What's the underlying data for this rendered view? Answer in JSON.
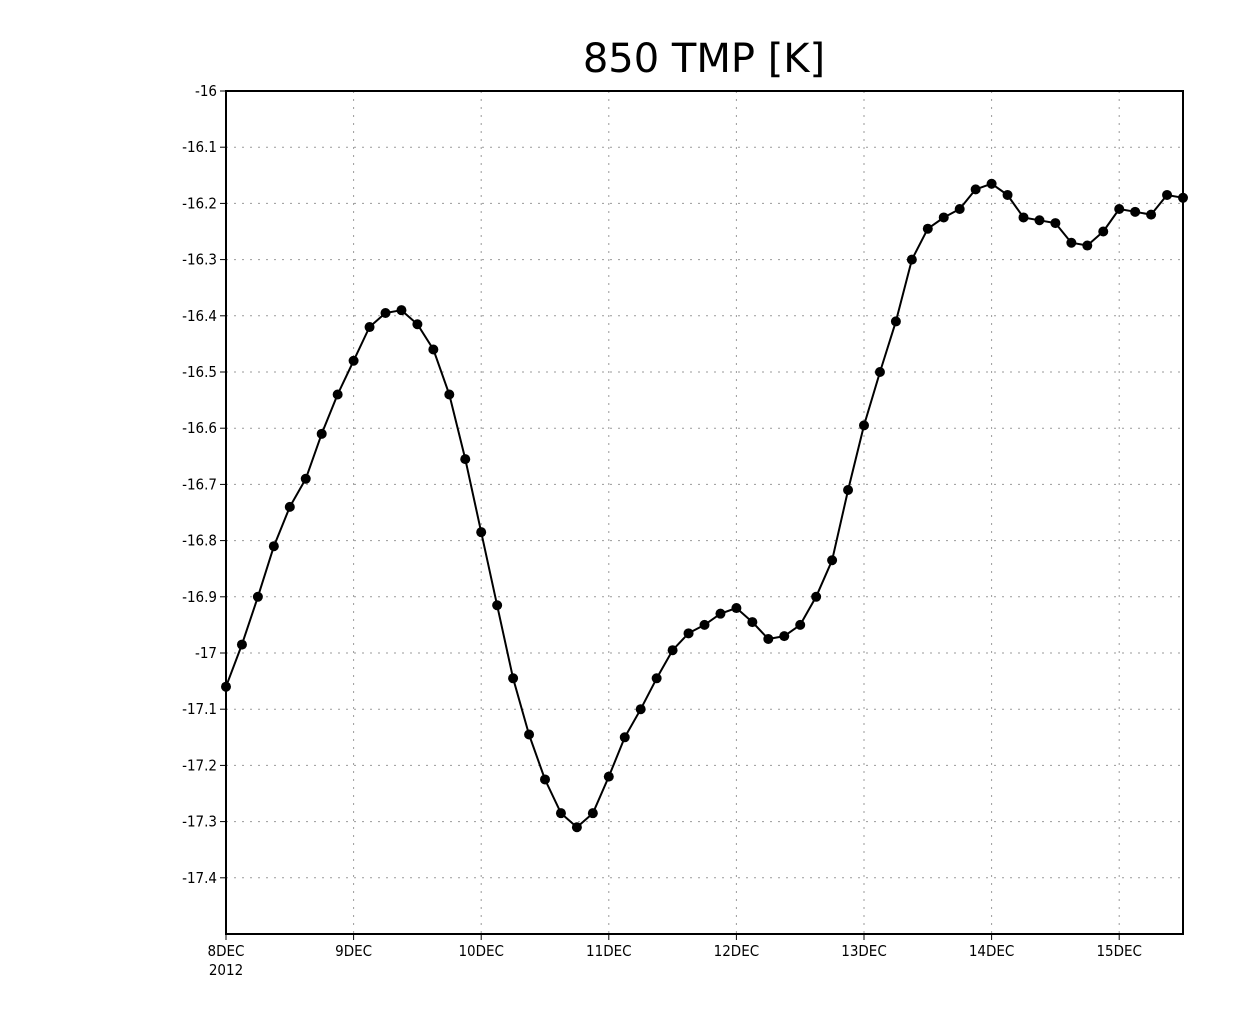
{
  "chart_data": {
    "type": "line",
    "title": "850 TMP [K]",
    "xlabel": "",
    "ylabel": "",
    "ylim": [
      -17.5,
      -16.0
    ],
    "yticks": [
      -16,
      -16.1,
      -16.2,
      -16.3,
      -16.4,
      -16.5,
      -16.6,
      -16.7,
      -16.8,
      -16.9,
      -17,
      -17.1,
      -17.2,
      -17.3,
      -17.4
    ],
    "ytick_labels": [
      "-16",
      "-16.1",
      "-16.2",
      "-16.3",
      "-16.4",
      "-16.5",
      "-16.6",
      "-16.7",
      "-16.8",
      "-16.9",
      "-17",
      "-17.1",
      "-17.2",
      "-17.3",
      "-17.4"
    ],
    "xlim": [
      "2012-12-08T00:00",
      "2012-12-15T12:00"
    ],
    "xtick_labels": [
      "8DEC",
      "9DEC",
      "10DEC",
      "11DEC",
      "12DEC",
      "13DEC",
      "14DEC",
      "15DEC"
    ],
    "xtick_dates": [
      "2012-12-08",
      "2012-12-09",
      "2012-12-10",
      "2012-12-11",
      "2012-12-12",
      "2012-12-13",
      "2012-12-14",
      "2012-12-15"
    ],
    "x_year_label": "2012",
    "grid": true,
    "series": [
      {
        "x": [
          "2012-12-08T00:00",
          "2012-12-08T03:00",
          "2012-12-08T06:00",
          "2012-12-08T09:00",
          "2012-12-08T12:00",
          "2012-12-08T15:00",
          "2012-12-08T18:00",
          "2012-12-08T21:00",
          "2012-12-09T00:00",
          "2012-12-09T03:00",
          "2012-12-09T06:00",
          "2012-12-09T09:00",
          "2012-12-09T12:00",
          "2012-12-09T15:00",
          "2012-12-09T18:00",
          "2012-12-09T21:00",
          "2012-12-10T00:00",
          "2012-12-10T03:00",
          "2012-12-10T06:00",
          "2012-12-10T09:00",
          "2012-12-10T12:00",
          "2012-12-10T15:00",
          "2012-12-10T18:00",
          "2012-12-10T21:00",
          "2012-12-11T00:00",
          "2012-12-11T03:00",
          "2012-12-11T06:00",
          "2012-12-11T09:00",
          "2012-12-11T12:00",
          "2012-12-11T15:00",
          "2012-12-11T18:00",
          "2012-12-11T21:00",
          "2012-12-12T00:00",
          "2012-12-12T03:00",
          "2012-12-12T06:00",
          "2012-12-12T09:00",
          "2012-12-12T12:00",
          "2012-12-12T15:00",
          "2012-12-12T18:00",
          "2012-12-12T21:00",
          "2012-12-13T00:00",
          "2012-12-13T03:00",
          "2012-12-13T06:00",
          "2012-12-13T09:00",
          "2012-12-13T12:00",
          "2012-12-13T15:00",
          "2012-12-13T18:00",
          "2012-12-13T21:00",
          "2012-12-14T00:00",
          "2012-12-14T03:00",
          "2012-12-14T06:00",
          "2012-12-14T09:00",
          "2012-12-14T12:00",
          "2012-12-14T15:00",
          "2012-12-14T18:00",
          "2012-12-14T21:00",
          "2012-12-15T00:00",
          "2012-12-15T03:00",
          "2012-12-15T06:00",
          "2012-12-15T09:00",
          "2012-12-15T12:00"
        ],
        "y": [
          -17.06,
          -16.985,
          -16.9,
          -16.81,
          -16.74,
          -16.69,
          -16.61,
          -16.54,
          -16.48,
          -16.42,
          -16.395,
          -16.39,
          -16.415,
          -16.46,
          -16.54,
          -16.655,
          -16.785,
          -16.915,
          -17.045,
          -17.145,
          -17.225,
          -17.285,
          -17.31,
          -17.285,
          -17.22,
          -17.15,
          -17.1,
          -17.045,
          -16.995,
          -16.965,
          -16.95,
          -16.93,
          -16.92,
          -16.945,
          -16.975,
          -16.97,
          -16.95,
          -16.9,
          -16.835,
          -16.71,
          -16.595,
          -16.5,
          -16.41,
          -16.3,
          -16.245,
          -16.225,
          -16.21,
          -16.175,
          -16.165,
          -16.185,
          -16.225,
          -16.23,
          -16.235,
          -16.27,
          -16.275,
          -16.25,
          -16.21,
          -16.215,
          -16.22,
          -16.185,
          -16.19
        ]
      }
    ]
  }
}
